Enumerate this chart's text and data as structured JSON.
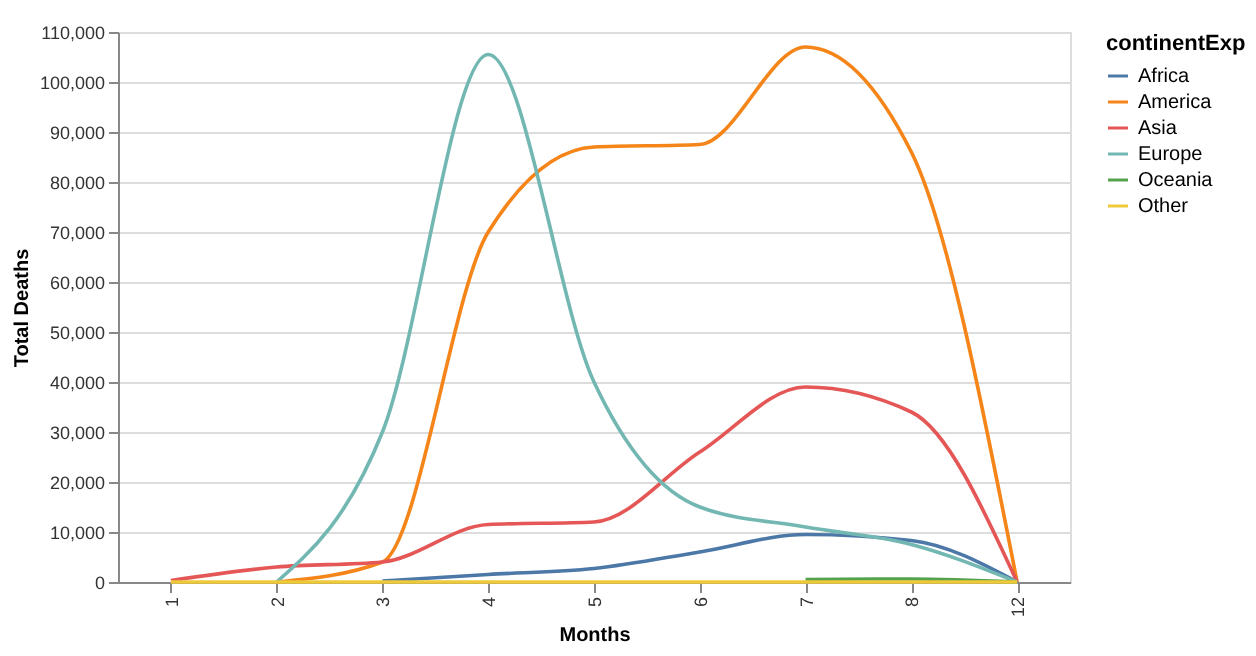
{
  "chart_data": {
    "type": "line",
    "xlabel": "Months",
    "ylabel": "Total Deaths",
    "legend_title": "continentExp",
    "categories": [
      "1",
      "2",
      "3",
      "4",
      "5",
      "6",
      "7",
      "8",
      "12"
    ],
    "series": [
      {
        "name": "Africa",
        "color": "#4c78a8",
        "values": [
          null,
          null,
          200,
          1500,
          2700,
          6000,
          9500,
          8300,
          0
        ]
      },
      {
        "name": "America",
        "color": "#f58518",
        "values": [
          null,
          0,
          4000,
          70000,
          87000,
          87500,
          107000,
          86000,
          0
        ]
      },
      {
        "name": "Asia",
        "color": "#e45756",
        "values": [
          300,
          3000,
          4000,
          11500,
          12000,
          26000,
          39000,
          34000,
          0
        ]
      },
      {
        "name": "Europe",
        "color": "#72b7b2",
        "values": [
          null,
          0,
          30000,
          105500,
          40000,
          15000,
          11000,
          7500,
          0
        ]
      },
      {
        "name": "Oceania",
        "color": "#54a24b",
        "values": [
          null,
          null,
          null,
          null,
          null,
          null,
          500,
          600,
          0
        ]
      },
      {
        "name": "Other",
        "color": "#eeca3b",
        "values": [
          0,
          0,
          0,
          0,
          0,
          0,
          0,
          0,
          0
        ]
      }
    ],
    "ylim": [
      0,
      110000
    ],
    "yticks": [
      0,
      {
        "value": 10000,
        "label": "10,000"
      },
      {
        "value": 20000,
        "label": "20,000"
      },
      {
        "value": 30000,
        "label": "30,000"
      },
      {
        "value": 40000,
        "label": "40,000"
      },
      {
        "value": 50000,
        "label": "50,000"
      },
      {
        "value": 60000,
        "label": "60,000"
      },
      {
        "value": 70000,
        "label": "70,000"
      },
      {
        "value": 80000,
        "label": "80,000"
      },
      {
        "value": 90000,
        "label": "90,000"
      },
      {
        "value": 100000,
        "label": "100,000"
      },
      {
        "value": 110000,
        "label": "110,000"
      }
    ],
    "grid": "y",
    "legend": "top right",
    "line_style": "solid",
    "marker": "none"
  }
}
